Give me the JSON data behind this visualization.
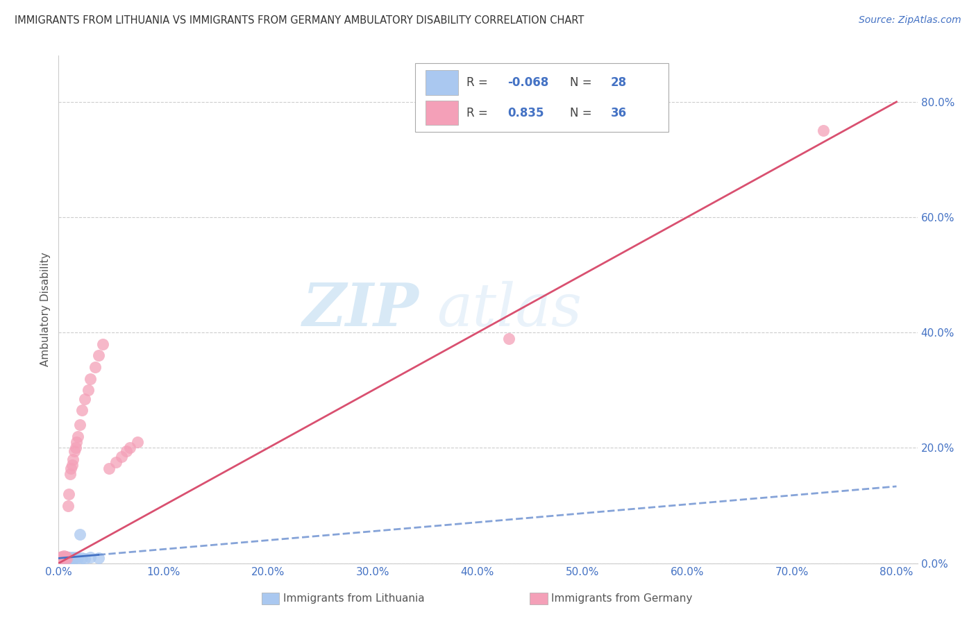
{
  "title": "IMMIGRANTS FROM LITHUANIA VS IMMIGRANTS FROM GERMANY AMBULATORY DISABILITY CORRELATION CHART",
  "source": "Source: ZipAtlas.com",
  "ylabel_label": "Ambulatory Disability",
  "xlim": [
    0.0,
    0.82
  ],
  "ylim": [
    0.0,
    0.88
  ],
  "x_ticks": [
    0.0,
    0.1,
    0.2,
    0.3,
    0.4,
    0.5,
    0.6,
    0.7,
    0.8
  ],
  "y_ticks_right": [
    0.0,
    0.2,
    0.4,
    0.6,
    0.8
  ],
  "lithuania_color": "#aac8f0",
  "germany_color": "#f4a0b8",
  "lithuania_line_color": "#4472c4",
  "germany_line_color": "#d95070",
  "legend_R_lithuania": "-0.068",
  "legend_N_lithuania": "28",
  "legend_R_germany": "0.835",
  "legend_N_germany": "36",
  "background_color": "#ffffff",
  "grid_color": "#c8c8c8",
  "watermark_zip": "ZIP",
  "watermark_atlas": "atlas",
  "lithuania_x": [
    0.001,
    0.002,
    0.003,
    0.004,
    0.005,
    0.005,
    0.006,
    0.006,
    0.007,
    0.007,
    0.008,
    0.008,
    0.009,
    0.009,
    0.01,
    0.01,
    0.011,
    0.012,
    0.013,
    0.014,
    0.015,
    0.016,
    0.018,
    0.02,
    0.022,
    0.025,
    0.03,
    0.038
  ],
  "lithuania_y": [
    0.008,
    0.009,
    0.01,
    0.008,
    0.009,
    0.011,
    0.008,
    0.01,
    0.009,
    0.011,
    0.008,
    0.01,
    0.009,
    0.011,
    0.008,
    0.01,
    0.009,
    0.008,
    0.01,
    0.009,
    0.008,
    0.01,
    0.009,
    0.05,
    0.009,
    0.008,
    0.01,
    0.009
  ],
  "germany_x": [
    0.001,
    0.002,
    0.003,
    0.004,
    0.005,
    0.005,
    0.006,
    0.007,
    0.007,
    0.008,
    0.009,
    0.01,
    0.011,
    0.012,
    0.013,
    0.014,
    0.015,
    0.016,
    0.017,
    0.018,
    0.02,
    0.022,
    0.025,
    0.028,
    0.03,
    0.035,
    0.038,
    0.042,
    0.048,
    0.055,
    0.06,
    0.065,
    0.068,
    0.075,
    0.43,
    0.73
  ],
  "germany_y": [
    0.008,
    0.01,
    0.012,
    0.009,
    0.011,
    0.013,
    0.01,
    0.012,
    0.011,
    0.008,
    0.1,
    0.12,
    0.155,
    0.165,
    0.17,
    0.18,
    0.195,
    0.2,
    0.21,
    0.22,
    0.24,
    0.265,
    0.285,
    0.3,
    0.32,
    0.34,
    0.36,
    0.38,
    0.165,
    0.175,
    0.185,
    0.195,
    0.2,
    0.21,
    0.39,
    0.75
  ]
}
